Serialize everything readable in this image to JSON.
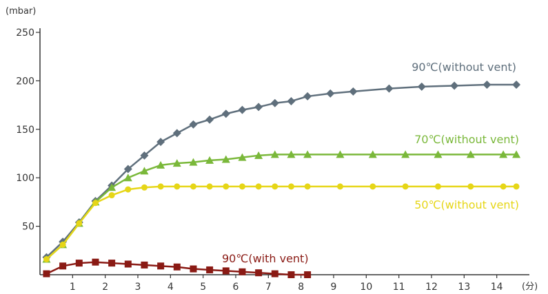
{
  "chart_data": {
    "type": "line",
    "ylabel": "(mbar)",
    "xlabel": "(分)",
    "xlim": [
      0,
      15
    ],
    "ylim": [
      0,
      250
    ],
    "x_ticks": [
      1,
      2,
      3,
      4,
      5,
      6,
      7,
      8,
      9,
      10,
      11,
      12,
      13,
      14
    ],
    "y_ticks": [
      50,
      100,
      150,
      200,
      250
    ],
    "grid": false,
    "series": [
      {
        "name": "90℃(without vent)",
        "color": "#5f6f7c",
        "marker": "diamond",
        "x": [
          0.2,
          0.7,
          1.2,
          1.7,
          2.2,
          2.7,
          3.2,
          3.7,
          4.2,
          4.7,
          5.2,
          5.7,
          6.2,
          6.7,
          7.2,
          7.7,
          8.2,
          8.9,
          9.6,
          10.7,
          11.7,
          12.7,
          13.7,
          14.6
        ],
        "values": [
          18,
          34,
          54,
          76,
          92,
          109,
          123,
          137,
          146,
          155,
          160,
          166,
          170,
          173,
          177,
          179,
          184,
          187,
          189,
          192,
          194,
          195,
          196,
          196
        ]
      },
      {
        "name": "70℃(without vent)",
        "color": "#7ab83a",
        "marker": "triangle",
        "x": [
          0.2,
          0.7,
          1.2,
          1.7,
          2.2,
          2.7,
          3.2,
          3.7,
          4.2,
          4.7,
          5.2,
          5.7,
          6.2,
          6.7,
          7.2,
          7.7,
          8.2,
          9.2,
          10.2,
          11.2,
          12.2,
          13.2,
          14.2,
          14.6
        ],
        "values": [
          16,
          31,
          53,
          75,
          90,
          100,
          107,
          113,
          115,
          116,
          118,
          119,
          121,
          123,
          124,
          124,
          124,
          124,
          124,
          124,
          124,
          124,
          124,
          124
        ]
      },
      {
        "name": "50℃(without vent)",
        "color": "#e6d617",
        "marker": "circle",
        "x": [
          0.2,
          0.7,
          1.2,
          1.7,
          2.2,
          2.7,
          3.2,
          3.7,
          4.2,
          4.7,
          5.2,
          5.7,
          6.2,
          6.7,
          7.2,
          7.7,
          8.2,
          9.2,
          10.2,
          11.2,
          12.2,
          13.2,
          14.2,
          14.6
        ],
        "values": [
          16,
          31,
          53,
          74,
          82,
          88,
          90,
          91,
          91,
          91,
          91,
          91,
          91,
          91,
          91,
          91,
          91,
          91,
          91,
          91,
          91,
          91,
          91,
          91
        ]
      },
      {
        "name": "90℃(with vent)",
        "color": "#8a1a14",
        "marker": "square",
        "x": [
          0.2,
          0.7,
          1.2,
          1.7,
          2.2,
          2.7,
          3.2,
          3.7,
          4.2,
          4.7,
          5.2,
          5.7,
          6.2,
          6.7,
          7.2,
          7.7,
          8.2
        ],
        "values": [
          1,
          9,
          12,
          13,
          12,
          11,
          10,
          9,
          8,
          6,
          5,
          4,
          3,
          2,
          1,
          0,
          0
        ]
      }
    ]
  }
}
